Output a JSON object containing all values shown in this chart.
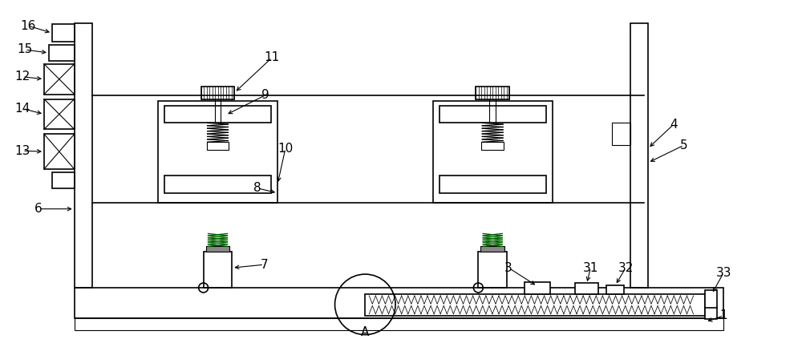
{
  "bg_color": "#ffffff",
  "line_color": "#000000",
  "lw": 1.2,
  "tlw": 0.8,
  "fig_width": 10.0,
  "fig_height": 4.23
}
